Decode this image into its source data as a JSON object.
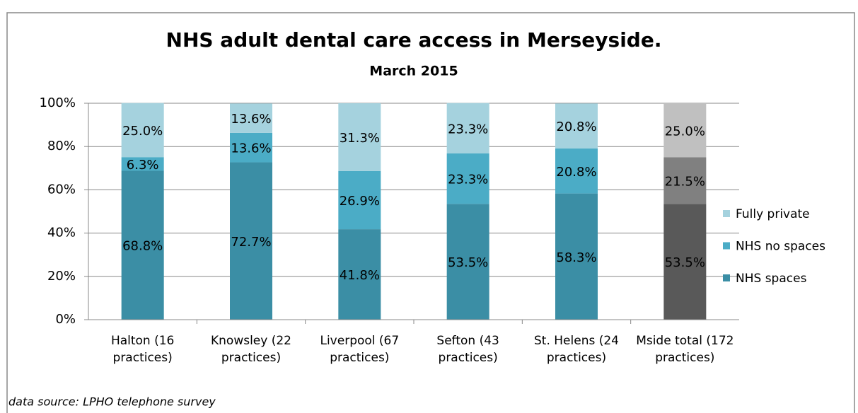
{
  "chart_data": {
    "type": "stacked_bar",
    "title": "NHS adult dental care access in Merseyside.",
    "subtitle": "March 2015",
    "footnote": "data source: LPHO telephone survey",
    "categories": [
      "Halton (16 practices)",
      "Knowsley (22 practices)",
      "Liverpool (67 practices)",
      "Sefton (43 practices)",
      "St. Helens (24 practices)",
      "Mside total (172 practices)"
    ],
    "series": [
      {
        "name": "NHS spaces",
        "color": "#3b8ea5",
        "colors": [
          "#3b8ea5",
          "#3b8ea5",
          "#3b8ea5",
          "#3b8ea5",
          "#3b8ea5",
          "#595959"
        ],
        "values": [
          68.8,
          72.7,
          41.8,
          53.5,
          58.3,
          53.5
        ],
        "value_labels": [
          "68.8%",
          "72.7%",
          "41.8%",
          "53.5%",
          "58.3%",
          "53.5%"
        ]
      },
      {
        "name": "NHS no spaces",
        "color": "#4bacc6",
        "colors": [
          "#4bacc6",
          "#4bacc6",
          "#4bacc6",
          "#4bacc6",
          "#4bacc6",
          "#808080"
        ],
        "values": [
          6.3,
          13.6,
          26.9,
          23.3,
          20.8,
          21.5
        ],
        "value_labels": [
          "6.3%",
          "13.6%",
          "26.9%",
          "23.3%",
          "20.8%",
          "21.5%"
        ]
      },
      {
        "name": "Fully private",
        "color": "#a5d2de",
        "colors": [
          "#a5d2de",
          "#a5d2de",
          "#a5d2de",
          "#a5d2de",
          "#a5d2de",
          "#c0c0c0"
        ],
        "values": [
          25.0,
          13.6,
          31.3,
          23.3,
          20.8,
          25.0
        ],
        "value_labels": [
          "25.0%",
          "13.6%",
          "31.3%",
          "23.3%",
          "20.8%",
          "25.0%"
        ]
      }
    ],
    "ylim": [
      0,
      100
    ],
    "yticks": [
      {
        "value": 0,
        "label": "0%"
      },
      {
        "value": 20,
        "label": "20%"
      },
      {
        "value": 40,
        "label": "40%"
      },
      {
        "value": 60,
        "label": "60%"
      },
      {
        "value": 80,
        "label": "80%"
      },
      {
        "value": 100,
        "label": "100%"
      }
    ],
    "grid": true,
    "legend": "right"
  }
}
